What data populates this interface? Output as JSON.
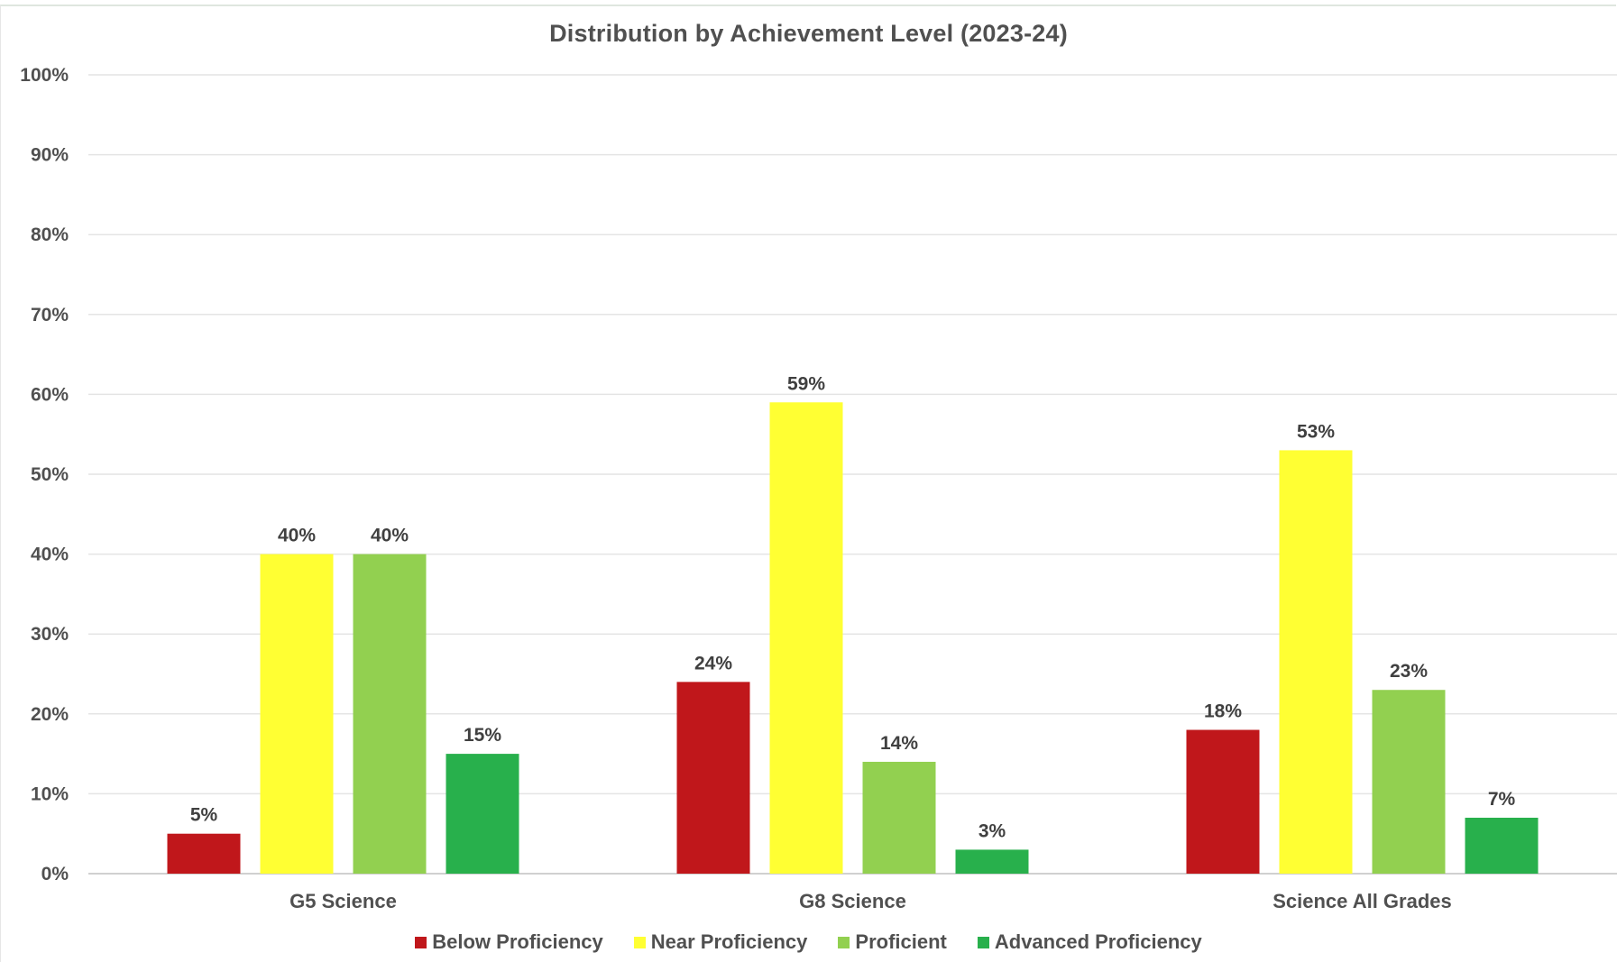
{
  "chart_data": {
    "type": "bar",
    "title": "Distribution by Achievement Level (2023-24)",
    "categories": [
      "G5 Science",
      "G8 Science",
      "Science All Grades"
    ],
    "series": [
      {
        "name": "Below Proficiency",
        "color": "#c0171b",
        "values": [
          5,
          24,
          18
        ],
        "labels": [
          "5%",
          "24%",
          "18%"
        ]
      },
      {
        "name": "Near Proficiency",
        "color": "#ffff33",
        "values": [
          40,
          59,
          53
        ],
        "labels": [
          "40%",
          "59%",
          "53%"
        ]
      },
      {
        "name": "Proficient",
        "color": "#92d050",
        "values": [
          40,
          14,
          23
        ],
        "labels": [
          "40%",
          "14%",
          "23%"
        ]
      },
      {
        "name": "Advanced Proficiency",
        "color": "#28b04c",
        "values": [
          15,
          3,
          7
        ],
        "labels": [
          "15%",
          "3%",
          "7%"
        ]
      }
    ],
    "y_ticks": [
      "0%",
      "10%",
      "20%",
      "30%",
      "40%",
      "50%",
      "60%",
      "70%",
      "80%",
      "90%",
      "100%"
    ],
    "ylim": [
      0,
      100
    ],
    "grid": true,
    "legend_position": "bottom"
  }
}
